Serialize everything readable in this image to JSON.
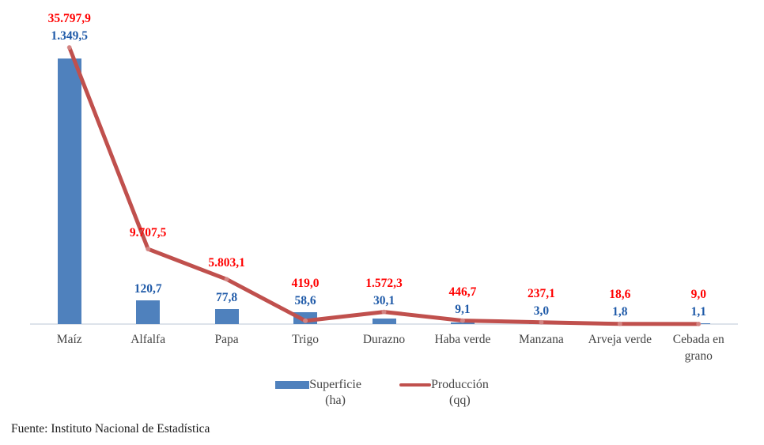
{
  "chart_data": {
    "type": "combo-bar-line",
    "categories": [
      "Maíz",
      "Alfalfa",
      "Papa",
      "Trigo",
      "Durazno",
      "Haba verde",
      "Manzana",
      "Arveja verde",
      "Cebada en grano"
    ],
    "series": [
      {
        "name": "Superficie (ha)",
        "type": "bar",
        "color": "#4F81BD",
        "label_color": "#1F5AA8",
        "values": [
          1349.5,
          120.7,
          77.8,
          58.6,
          30.1,
          9.1,
          3.0,
          1.8,
          1.1
        ],
        "labels": [
          "1.349,5",
          "120,7",
          "77,8",
          "58,6",
          "30,1",
          "9,1",
          "3,0",
          "1,8",
          "1,1"
        ]
      },
      {
        "name": "Producción (qq)",
        "type": "line",
        "color": "#C0504D",
        "marker_color": "#DA9694",
        "label_color": "#FF0000",
        "values": [
          35797.9,
          9707.5,
          5803.1,
          419.0,
          1572.3,
          446.7,
          237.1,
          18.6,
          9.0
        ],
        "labels": [
          "35.797,9",
          "9.707,5",
          "5.803,1",
          "419,0",
          "1.572,3",
          "446,7",
          "237,1",
          "18,6",
          "9,0"
        ]
      }
    ],
    "legend": {
      "position": "bottom",
      "items": [
        {
          "label": "Superficie",
          "unit": "(ha)",
          "swatch": "bar"
        },
        {
          "label": "Producción",
          "unit": "(qq)",
          "swatch": "line"
        }
      ]
    },
    "axes": {
      "x_baseline_color": "#DDE3EA",
      "y_axis_visible": false,
      "gridlines": false,
      "bar_ylim": [
        0,
        1349.5
      ],
      "line_ylim": [
        0,
        35797.9
      ]
    }
  },
  "footer": {
    "source": "Fuente: Instituto Nacional de Estadística"
  }
}
